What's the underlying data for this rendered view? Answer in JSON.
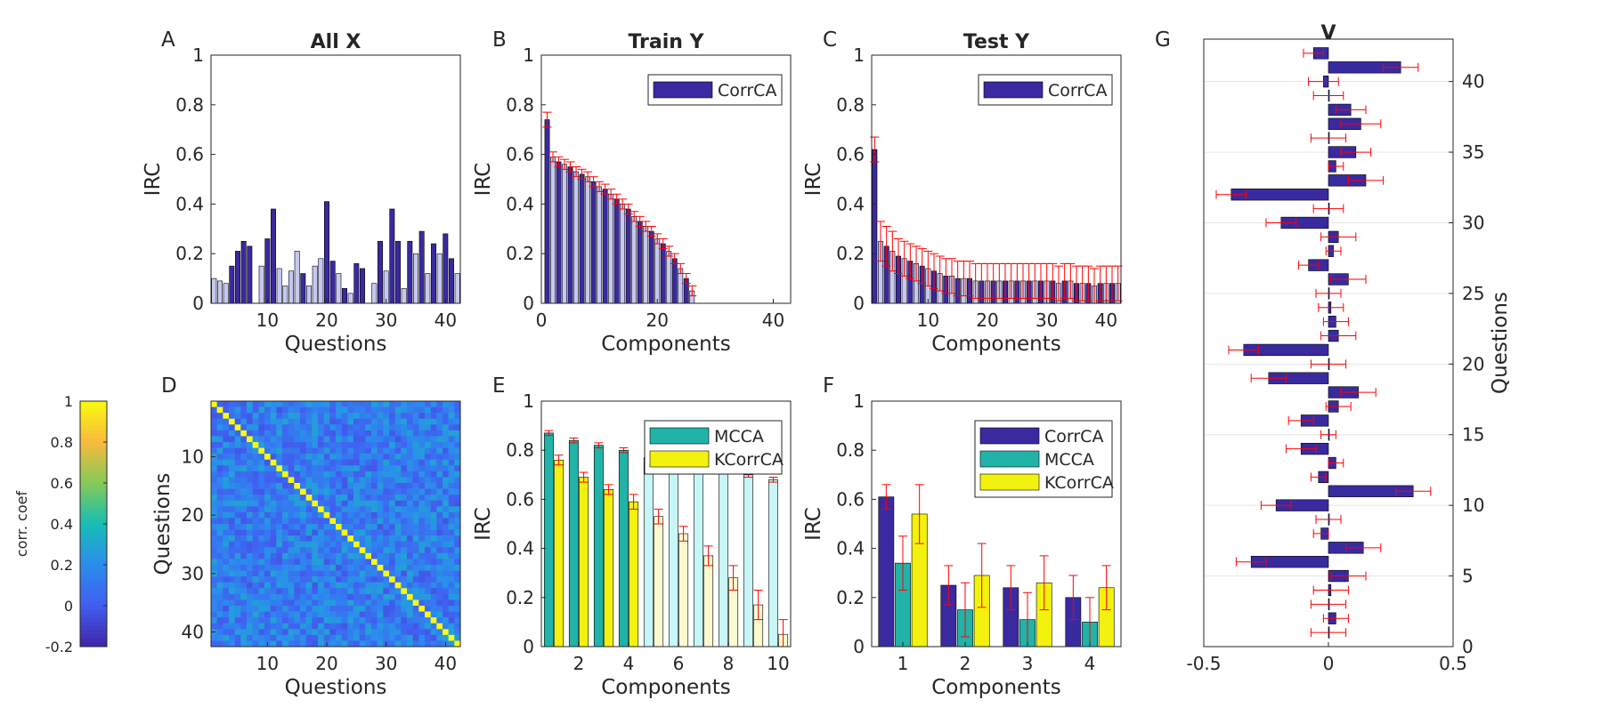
{
  "colors": {
    "corrca": "#3a2aa0",
    "corrca_light": "#c5c8ef",
    "mcca": "#21b3a8",
    "mcca_light": "#c8f5f5",
    "kcorrca": "#f2f20e",
    "kcorrca_light": "#fbf9cf",
    "error": "#ff0000",
    "axis": "#262626"
  },
  "chart_data": [
    {
      "panel": "A",
      "title": "All X",
      "type": "bar",
      "xlabel": "Questions",
      "ylabel": "IRC",
      "xlim": [
        0.5,
        42.5
      ],
      "ylim": [
        0,
        1
      ],
      "xticks": [
        10,
        20,
        30,
        40
      ],
      "yticks": [
        0,
        0.2,
        0.4,
        0.6,
        0.8,
        1
      ],
      "values": [
        0.1,
        0.09,
        0.08,
        0.15,
        0.21,
        0.25,
        0.23,
        0.0,
        0.15,
        0.26,
        0.38,
        0.14,
        0.07,
        0.13,
        0.21,
        0.12,
        0.07,
        0.15,
        0.18,
        0.41,
        0.17,
        0.12,
        0.06,
        0.04,
        0.16,
        0.14,
        0.0,
        0.08,
        0.25,
        0.13,
        0.38,
        0.25,
        0.06,
        0.25,
        0.2,
        0.29,
        0.12,
        0.24,
        0.2,
        0.28,
        0.18,
        0.12
      ],
      "dark": [
        false,
        false,
        false,
        true,
        true,
        true,
        true,
        false,
        false,
        true,
        true,
        false,
        false,
        false,
        false,
        true,
        false,
        false,
        false,
        true,
        true,
        false,
        true,
        false,
        true,
        true,
        false,
        false,
        true,
        false,
        true,
        true,
        false,
        true,
        false,
        true,
        false,
        true,
        false,
        true,
        true,
        false
      ]
    },
    {
      "panel": "B",
      "title": "Train Y",
      "type": "bar",
      "xlabel": "Components",
      "ylabel": "IRC",
      "xlim": [
        0,
        43
      ],
      "ylim": [
        0,
        1
      ],
      "xticks": [
        0,
        20,
        40
      ],
      "yticks": [
        0,
        0.2,
        0.4,
        0.6,
        0.8,
        1
      ],
      "legend": [
        "CorrCA"
      ],
      "legend_position": "top-right",
      "values": [
        0.74,
        0.59,
        0.57,
        0.56,
        0.55,
        0.53,
        0.52,
        0.51,
        0.49,
        0.47,
        0.46,
        0.44,
        0.42,
        0.4,
        0.38,
        0.35,
        0.33,
        0.31,
        0.29,
        0.26,
        0.24,
        0.21,
        0.18,
        0.14,
        0.1,
        0.05,
        0,
        0,
        0,
        0,
        0,
        0,
        0,
        0,
        0,
        0,
        0,
        0,
        0,
        0,
        0,
        0
      ],
      "errors": [
        0.03,
        0.02,
        0.02,
        0.02,
        0.02,
        0.02,
        0.02,
        0.02,
        0.02,
        0.02,
        0.02,
        0.02,
        0.02,
        0.02,
        0.02,
        0.02,
        0.02,
        0.02,
        0.02,
        0.02,
        0.02,
        0.02,
        0.02,
        0.02,
        0.02,
        0.02,
        0,
        0,
        0,
        0,
        0,
        0,
        0,
        0,
        0,
        0,
        0,
        0,
        0,
        0,
        0,
        0
      ]
    },
    {
      "panel": "C",
      "title": "Test Y",
      "type": "bar",
      "xlabel": "Components",
      "ylabel": "IRC",
      "xlim": [
        0.5,
        42.5
      ],
      "ylim": [
        0,
        1
      ],
      "xticks": [
        10,
        20,
        30,
        40
      ],
      "yticks": [
        0,
        0.2,
        0.4,
        0.6,
        0.8,
        1
      ],
      "legend": [
        "CorrCA"
      ],
      "legend_position": "top-right",
      "values": [
        0.62,
        0.25,
        0.23,
        0.21,
        0.19,
        0.18,
        0.17,
        0.16,
        0.15,
        0.14,
        0.13,
        0.12,
        0.11,
        0.11,
        0.1,
        0.1,
        0.1,
        0.09,
        0.09,
        0.09,
        0.09,
        0.09,
        0.09,
        0.09,
        0.09,
        0.09,
        0.09,
        0.09,
        0.09,
        0.09,
        0.09,
        0.08,
        0.09,
        0.09,
        0.08,
        0.08,
        0.08,
        0.07,
        0.08,
        0.08,
        0.08,
        0.08
      ],
      "errors": [
        0.05,
        0.08,
        0.08,
        0.08,
        0.07,
        0.07,
        0.07,
        0.07,
        0.07,
        0.07,
        0.07,
        0.07,
        0.07,
        0.07,
        0.07,
        0.07,
        0.07,
        0.07,
        0.07,
        0.07,
        0.07,
        0.07,
        0.07,
        0.07,
        0.07,
        0.07,
        0.07,
        0.07,
        0.07,
        0.07,
        0.07,
        0.07,
        0.07,
        0.07,
        0.07,
        0.07,
        0.07,
        0.07,
        0.07,
        0.07,
        0.07,
        0.07
      ]
    },
    {
      "panel": "D",
      "type": "heatmap",
      "xlabel": "Questions",
      "ylabel": "Questions",
      "n": 42,
      "xticks": [
        10,
        20,
        30,
        40
      ],
      "yticks": [
        10,
        20,
        30,
        40
      ],
      "colorbar_label": "corr. coef",
      "colorbar_ticks": [
        "1",
        "0.8",
        "0.6",
        "0.4",
        "0.2",
        "0",
        "-0.2"
      ],
      "clim": [
        -0.2,
        1
      ]
    },
    {
      "panel": "E",
      "type": "bar",
      "xlabel": "Components",
      "ylabel": "IRC",
      "xlim": [
        0.5,
        10.5
      ],
      "ylim": [
        0,
        1
      ],
      "xticks": [
        2,
        4,
        6,
        8,
        10
      ],
      "yticks": [
        0,
        0.2,
        0.4,
        0.6,
        0.8,
        1
      ],
      "legend": [
        "MCCA",
        "KCorrCA"
      ],
      "legend_position": "top-right",
      "categories": [
        1,
        2,
        3,
        4,
        5,
        6,
        7,
        8,
        9,
        10
      ],
      "series": [
        {
          "name": "MCCA",
          "values": [
            0.87,
            0.84,
            0.82,
            0.8,
            0.77,
            0.75,
            0.74,
            0.72,
            0.7,
            0.68
          ],
          "errors": [
            0.01,
            0.01,
            0.01,
            0.01,
            0.01,
            0.01,
            0.01,
            0.01,
            0.01,
            0.01
          ],
          "dark": [
            true,
            true,
            true,
            true,
            false,
            false,
            false,
            false,
            false,
            false
          ]
        },
        {
          "name": "KCorrCA",
          "values": [
            0.76,
            0.69,
            0.64,
            0.59,
            0.53,
            0.46,
            0.37,
            0.28,
            0.17,
            0.05
          ],
          "errors": [
            0.02,
            0.02,
            0.02,
            0.03,
            0.03,
            0.03,
            0.04,
            0.05,
            0.06,
            0.06
          ],
          "dark": [
            true,
            true,
            true,
            true,
            false,
            false,
            false,
            false,
            false,
            false
          ]
        }
      ]
    },
    {
      "panel": "F",
      "type": "bar",
      "xlabel": "Components",
      "ylabel": "IRC",
      "xlim": [
        0.5,
        4.5
      ],
      "ylim": [
        0,
        1
      ],
      "xticks": [
        1,
        2,
        3,
        4
      ],
      "yticks": [
        0,
        0.2,
        0.4,
        0.6,
        0.8,
        1
      ],
      "legend": [
        "CorrCA",
        "MCCA",
        "KCorrCA"
      ],
      "legend_position": "top-right",
      "categories": [
        1,
        2,
        3,
        4
      ],
      "series": [
        {
          "name": "CorrCA",
          "values": [
            0.61,
            0.25,
            0.24,
            0.2
          ],
          "errors": [
            0.05,
            0.08,
            0.09,
            0.09
          ]
        },
        {
          "name": "MCCA",
          "values": [
            0.34,
            0.15,
            0.11,
            0.1
          ],
          "errors": [
            0.11,
            0.11,
            0.11,
            0.1
          ]
        },
        {
          "name": "KCorrCA",
          "values": [
            0.54,
            0.29,
            0.26,
            0.24
          ],
          "errors": [
            0.12,
            0.13,
            0.11,
            0.09
          ]
        }
      ]
    },
    {
      "panel": "G",
      "title": "V",
      "type": "bar",
      "orientation": "horizontal",
      "xlabel": "",
      "ylabel": "Questions",
      "xlim": [
        -0.5,
        0.5
      ],
      "ylim": [
        0,
        43
      ],
      "xticks": [
        -0.5,
        0,
        0.5
      ],
      "yticks": [
        0,
        5,
        10,
        15,
        20,
        25,
        30,
        35,
        40
      ],
      "categories": [
        1,
        2,
        3,
        4,
        5,
        6,
        7,
        8,
        9,
        10,
        11,
        12,
        13,
        14,
        15,
        16,
        17,
        18,
        19,
        20,
        21,
        22,
        23,
        24,
        25,
        26,
        27,
        28,
        29,
        30,
        31,
        32,
        33,
        34,
        35,
        36,
        37,
        38,
        39,
        40,
        41,
        42
      ],
      "values": [
        0.0,
        0.03,
        0.0,
        0.01,
        0.08,
        -0.31,
        0.14,
        -0.03,
        0.0,
        -0.21,
        0.34,
        -0.04,
        0.03,
        -0.11,
        0.0,
        -0.11,
        0.04,
        0.12,
        -0.24,
        0.0,
        -0.34,
        0.04,
        0.03,
        0.01,
        0.0,
        0.08,
        -0.08,
        0.02,
        0.04,
        -0.19,
        0.0,
        -0.39,
        0.15,
        0.03,
        0.11,
        0.0,
        0.13,
        0.09,
        0.0,
        -0.02,
        0.29,
        -0.06
      ],
      "errors": [
        0.07,
        0.05,
        0.07,
        0.07,
        0.07,
        0.06,
        0.07,
        0.03,
        0.05,
        0.06,
        0.07,
        0.03,
        0.03,
        0.06,
        0.03,
        0.05,
        0.05,
        0.07,
        0.07,
        0.07,
        0.06,
        0.07,
        0.05,
        0.05,
        0.05,
        0.07,
        0.04,
        0.03,
        0.07,
        0.06,
        0.06,
        0.06,
        0.07,
        0.03,
        0.06,
        0.07,
        0.08,
        0.06,
        0.06,
        0.06,
        0.07,
        0.04
      ]
    }
  ]
}
